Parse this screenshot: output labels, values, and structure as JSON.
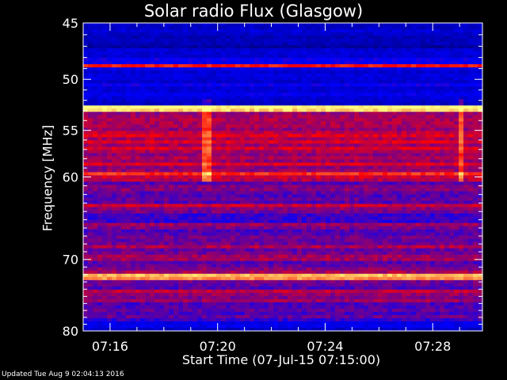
{
  "chart_data": {
    "type": "heatmap",
    "title": "Solar radio Flux (Glasgow)",
    "xlabel": "Start Time (07-Jul-15 07:15:00)",
    "ylabel": "Frequency [MHz]",
    "x_ticks": [
      "07:16",
      "07:20",
      "07:24",
      "07:28"
    ],
    "x_tick_minutes": [
      1,
      5,
      9,
      13
    ],
    "xlim_minutes": [
      0,
      14.85
    ],
    "y_ticks": [
      45,
      50,
      55,
      60,
      70,
      80
    ],
    "y_scale": "log",
    "ylim": [
      45,
      80
    ],
    "colormap": [
      "#00006e",
      "#0000ff",
      "#ff0000",
      "#ffff80"
    ],
    "features": {
      "bright_bands_mhz": [
        48.8,
        52.8,
        72.3
      ],
      "strong_bands_mhz": [
        59.7,
        63.3,
        74.3
      ],
      "burst_column_times_min": [
        4.6,
        14.1
      ]
    }
  },
  "footer": {
    "updated": "Updated Tue Aug  9 02:04:13 2016"
  }
}
